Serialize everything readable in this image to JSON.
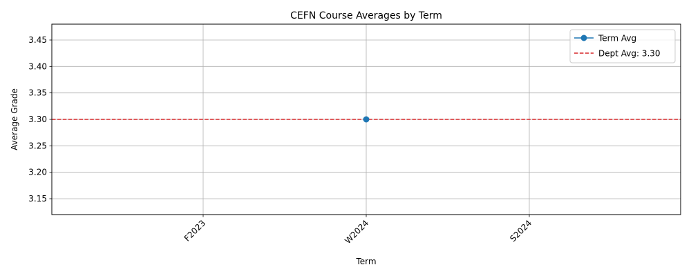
{
  "chart_data": {
    "type": "line",
    "title": "CEFN Course Averages by Term",
    "xlabel": "Term",
    "ylabel": "Average Grade",
    "categories": [
      "F2023",
      "W2024",
      "S2024"
    ],
    "series": [
      {
        "name": "Term Avg",
        "color": "#1f77b4",
        "points": [
          {
            "x": "W2024",
            "y": 3.3
          }
        ]
      }
    ],
    "reference_lines": [
      {
        "name": "Dept Avg: 3.30",
        "value": 3.3,
        "color": "#d62728",
        "style": "dashed"
      }
    ],
    "ylim": [
      3.12,
      3.48
    ],
    "yticks": [
      3.15,
      3.2,
      3.25,
      3.3,
      3.35,
      3.4,
      3.45
    ],
    "ytick_labels": [
      "3.15",
      "3.20",
      "3.25",
      "3.30",
      "3.35",
      "3.40",
      "3.45"
    ],
    "grid": true,
    "legend": "top-right"
  }
}
